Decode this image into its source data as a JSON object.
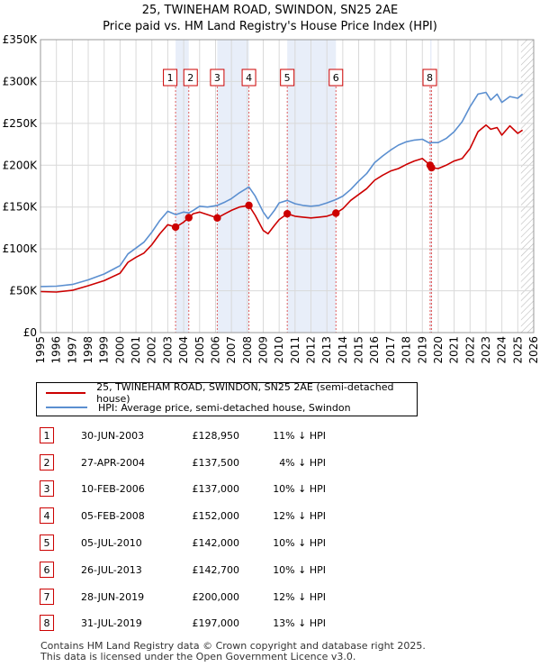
{
  "chart_data": {
    "type": "line",
    "title": "25, TWINEHAM ROAD, SWINDON, SN25 2AE",
    "subtitle": "Price paid vs. HM Land Registry's House Price Index (HPI)",
    "xlim": [
      1995,
      2026
    ],
    "ylim": [
      0,
      350000
    ],
    "x_ticks": [
      "1995",
      "1996",
      "1997",
      "1998",
      "1999",
      "2000",
      "2001",
      "2002",
      "2003",
      "2004",
      "2005",
      "2006",
      "2007",
      "2008",
      "2009",
      "2010",
      "2011",
      "2012",
      "2013",
      "2014",
      "2015",
      "2016",
      "2017",
      "2018",
      "2019",
      "2020",
      "2021",
      "2022",
      "2023",
      "2024",
      "2025",
      "2026"
    ],
    "y_ticks": [
      {
        "value": 0,
        "label": "£0"
      },
      {
        "value": 50000,
        "label": "£50K"
      },
      {
        "value": 100000,
        "label": "£100K"
      },
      {
        "value": 150000,
        "label": "£150K"
      },
      {
        "value": 200000,
        "label": "£200K"
      },
      {
        "value": 250000,
        "label": "£250K"
      },
      {
        "value": 300000,
        "label": "£300K"
      },
      {
        "value": 350000,
        "label": "£350K"
      }
    ],
    "grid": true,
    "series": [
      {
        "name": "25, TWINEHAM ROAD, SWINDON, SN25 2AE (semi-detached house)",
        "color": "#cc0000",
        "x": [
          1995,
          1996,
          1997,
          1998,
          1999,
          2000,
          2000.5,
          2001,
          2001.5,
          2002,
          2002.5,
          2003,
          2003.5,
          2004,
          2004.33,
          2004.6,
          2005,
          2005.5,
          2006.11,
          2006.6,
          2007,
          2007.5,
          2008.1,
          2008.5,
          2009,
          2009.3,
          2009.7,
          2010,
          2010.51,
          2011,
          2011.5,
          2012,
          2012.5,
          2013,
          2013.57,
          2014,
          2014.5,
          2015,
          2015.5,
          2016,
          2016.5,
          2017,
          2017.5,
          2018,
          2018.5,
          2019,
          2019.49,
          2019.58,
          2020,
          2020.5,
          2021,
          2021.5,
          2022,
          2022.5,
          2023,
          2023.3,
          2023.7,
          2024,
          2024.5,
          2025,
          2025.3
        ],
        "values": [
          49000,
          48500,
          50500,
          56000,
          62000,
          71000,
          84000,
          90000,
          95000,
          105000,
          118000,
          128950,
          126000,
          132000,
          137500,
          142000,
          144000,
          141000,
          137000,
          142000,
          146000,
          150000,
          152000,
          140000,
          122000,
          118000,
          128000,
          135000,
          142000,
          139000,
          138000,
          137000,
          138000,
          139000,
          142700,
          148000,
          158000,
          165000,
          172000,
          182000,
          188000,
          193000,
          196000,
          201000,
          205000,
          208000,
          200000,
          197000,
          196000,
          200000,
          205000,
          208000,
          220000,
          240000,
          248000,
          243000,
          245000,
          236000,
          247000,
          238000,
          242000
        ]
      },
      {
        "name": "HPI: Average price, semi-detached house, Swindon",
        "color": "#5b8fd0",
        "x": [
          1995,
          1996,
          1997,
          1998,
          1999,
          2000,
          2000.5,
          2001,
          2001.5,
          2002,
          2002.5,
          2003,
          2003.5,
          2004,
          2004.33,
          2004.6,
          2005,
          2005.5,
          2006.11,
          2006.6,
          2007,
          2007.5,
          2008.1,
          2008.5,
          2009,
          2009.3,
          2009.7,
          2010,
          2010.51,
          2011,
          2011.5,
          2012,
          2012.5,
          2013,
          2013.57,
          2014,
          2014.5,
          2015,
          2015.5,
          2016,
          2016.5,
          2017,
          2017.5,
          2018,
          2018.5,
          2019,
          2019.49,
          2019.58,
          2020,
          2020.5,
          2021,
          2021.5,
          2022,
          2022.5,
          2023,
          2023.3,
          2023.7,
          2024,
          2024.5,
          2025,
          2025.3
        ],
        "values": [
          55000,
          55500,
          57500,
          63000,
          70000,
          80000,
          94000,
          101000,
          108000,
          120000,
          134000,
          145000,
          141000,
          144000,
          143000,
          146000,
          151000,
          150000,
          152000,
          156000,
          160000,
          167000,
          174000,
          163000,
          144000,
          136000,
          146000,
          155000,
          158000,
          154000,
          152000,
          151000,
          152000,
          155000,
          159000,
          163000,
          171000,
          181000,
          190000,
          203000,
          211000,
          218000,
          224000,
          228000,
          230000,
          231000,
          226000,
          227000,
          227000,
          232000,
          240000,
          252000,
          270000,
          285000,
          287000,
          278000,
          285000,
          275000,
          282000,
          280000,
          285000
        ]
      }
    ],
    "sales": [
      {
        "id": "1",
        "x": 2003.49
      },
      {
        "id": "2",
        "x": 2004.32
      },
      {
        "id": "3",
        "x": 2006.11
      },
      {
        "id": "4",
        "x": 2008.1
      },
      {
        "id": "5",
        "x": 2010.51
      },
      {
        "id": "6",
        "x": 2013.57
      },
      {
        "id": "7",
        "x": 2019.49
      },
      {
        "id": "8",
        "x": 2019.58
      }
    ],
    "label_boxes": [
      "1",
      "2",
      "3",
      "4",
      "5",
      "6",
      "8"
    ],
    "shaded_ranges": [
      [
        2003.49,
        2004.32
      ],
      [
        2006.11,
        2008.1
      ],
      [
        2010.51,
        2013.57
      ],
      [
        2019.49,
        2019.58
      ]
    ],
    "hatch_from": 2025.2
  },
  "legend": {
    "red_label": "25, TWINEHAM ROAD, SWINDON, SN25 2AE (semi-detached house)",
    "blue_label": "HPI: Average price, semi-detached house, Swindon"
  },
  "transactions": [
    {
      "id": "1",
      "date": "30-JUN-2003",
      "price": "£128,950",
      "hpi": "11% ↓ HPI"
    },
    {
      "id": "2",
      "date": "27-APR-2004",
      "price": "£137,500",
      "hpi": "4% ↓ HPI"
    },
    {
      "id": "3",
      "date": "10-FEB-2006",
      "price": "£137,000",
      "hpi": "10% ↓ HPI"
    },
    {
      "id": "4",
      "date": "05-FEB-2008",
      "price": "£152,000",
      "hpi": "12% ↓ HPI"
    },
    {
      "id": "5",
      "date": "05-JUL-2010",
      "price": "£142,000",
      "hpi": "10% ↓ HPI"
    },
    {
      "id": "6",
      "date": "26-JUL-2013",
      "price": "£142,700",
      "hpi": "10% ↓ HPI"
    },
    {
      "id": "7",
      "date": "28-JUN-2019",
      "price": "£200,000",
      "hpi": "12% ↓ HPI"
    },
    {
      "id": "8",
      "date": "31-JUL-2019",
      "price": "£197,000",
      "hpi": "13% ↓ HPI"
    }
  ],
  "footer": {
    "line1": "Contains HM Land Registry data © Crown copyright and database right 2025.",
    "line2": "This data is licensed under the Open Government Licence v3.0."
  }
}
